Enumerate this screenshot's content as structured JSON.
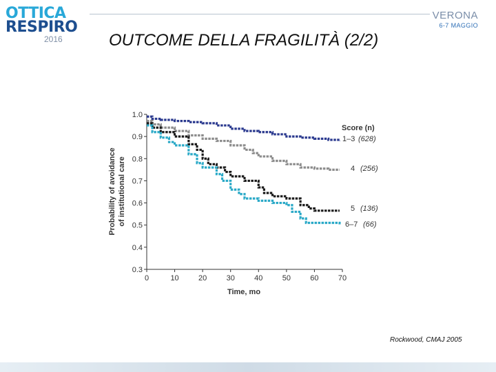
{
  "branding": {
    "left_logo": {
      "line1": "OTTICA",
      "line2": "RESPIRO",
      "year": "2016"
    },
    "right_logo": {
      "city": "VERONA",
      "dates": "6-7 MAGGIO"
    },
    "colors": {
      "light_blue": "#29a8d8",
      "dark_blue": "#1d4e8f"
    }
  },
  "slide": {
    "title": "OUTCOME DELLA FRAGILITÀ (2/2)",
    "citation": "Rockwood, CMAJ 2005"
  },
  "chart_data": {
    "type": "line",
    "xlabel": "Time, mo",
    "ylabel_line1": "Probability of avoidance",
    "ylabel_line2": "of institutional care",
    "xlim": [
      0,
      70
    ],
    "ylim": [
      0.3,
      1.0
    ],
    "x_ticks": [
      "0",
      "10",
      "20",
      "30",
      "40",
      "50",
      "60",
      "70"
    ],
    "y_ticks": [
      "0.3",
      "0.4",
      "0.5",
      "0.6",
      "0.7",
      "0.8",
      "0.9",
      "1.0"
    ],
    "grid": false,
    "legend_title": "Score (n)",
    "series": [
      {
        "name": "1–3 (628)",
        "label_score": "1–3",
        "label_n": "(628)",
        "color": "#2b3a8f",
        "x": [
          0,
          2,
          5,
          10,
          15,
          20,
          25,
          30,
          35,
          40,
          45,
          50,
          55,
          60,
          65,
          69
        ],
        "y": [
          0.99,
          0.98,
          0.975,
          0.97,
          0.965,
          0.96,
          0.95,
          0.935,
          0.925,
          0.92,
          0.91,
          0.9,
          0.895,
          0.89,
          0.885,
          0.88
        ]
      },
      {
        "name": "4 (256)",
        "label_score": "4",
        "label_n": "(256)",
        "color": "#8c8c8c",
        "x": [
          0,
          2,
          5,
          10,
          15,
          20,
          25,
          30,
          35,
          38,
          40,
          45,
          50,
          55,
          60,
          65,
          69
        ],
        "y": [
          0.97,
          0.955,
          0.94,
          0.925,
          0.905,
          0.89,
          0.88,
          0.86,
          0.84,
          0.825,
          0.81,
          0.79,
          0.775,
          0.76,
          0.755,
          0.75,
          0.75
        ]
      },
      {
        "name": "5 (136)",
        "label_score": "5",
        "label_n": "(136)",
        "color": "#1a1a1a",
        "x": [
          0,
          2,
          5,
          10,
          15,
          18,
          20,
          22,
          25,
          28,
          30,
          35,
          40,
          42,
          45,
          50,
          55,
          58,
          60,
          65,
          69
        ],
        "y": [
          0.96,
          0.94,
          0.92,
          0.9,
          0.865,
          0.84,
          0.8,
          0.775,
          0.76,
          0.74,
          0.72,
          0.7,
          0.67,
          0.645,
          0.63,
          0.62,
          0.59,
          0.575,
          0.565,
          0.565,
          0.565
        ]
      },
      {
        "name": "6–7 (66)",
        "label_score": "6–7",
        "label_n": "(66)",
        "color": "#2aa9c7",
        "x": [
          0,
          2,
          5,
          8,
          10,
          15,
          18,
          20,
          25,
          27,
          30,
          33,
          35,
          40,
          45,
          50,
          52,
          55,
          57,
          60,
          65,
          69
        ],
        "y": [
          0.95,
          0.92,
          0.895,
          0.875,
          0.86,
          0.82,
          0.78,
          0.76,
          0.73,
          0.7,
          0.66,
          0.64,
          0.62,
          0.61,
          0.6,
          0.59,
          0.56,
          0.53,
          0.51,
          0.51,
          0.51,
          0.5
        ]
      }
    ]
  }
}
